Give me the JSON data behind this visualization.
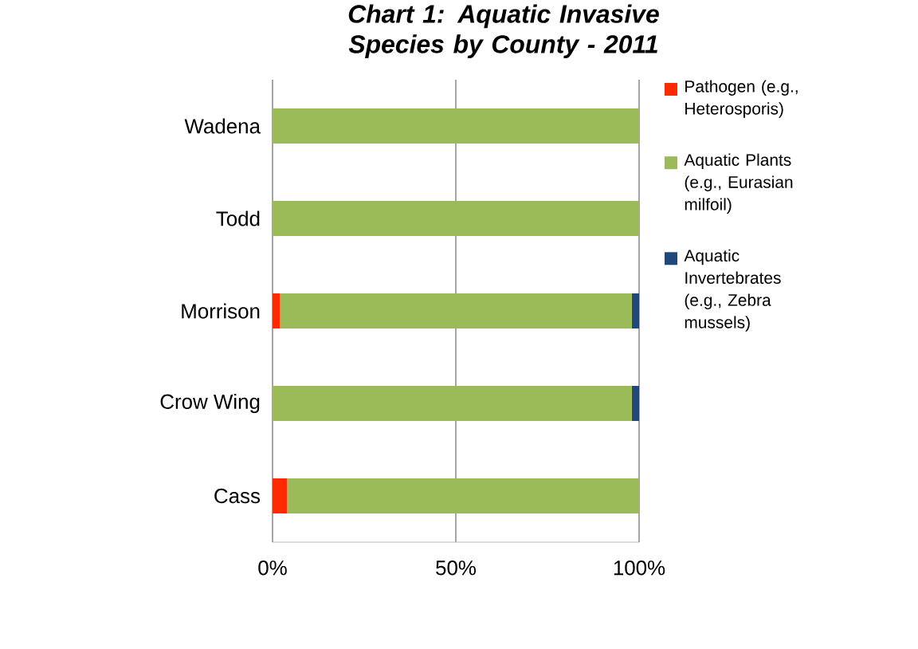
{
  "chart_data": {
    "type": "bar",
    "orientation": "horizontal",
    "stacked": true,
    "title": "Chart 1: Aquatic Invasive Species by County - 2011",
    "categories": [
      "Wadena",
      "Todd",
      "Morrison",
      "Crow Wing",
      "Cass"
    ],
    "series": [
      {
        "name": "Pathogen (e.g., Heterosporis)",
        "color": "#ff2a00",
        "values": [
          0,
          0,
          2,
          0,
          4
        ]
      },
      {
        "name": "Aquatic Plants (e.g., Eurasian milfoil)",
        "color": "#9bbb59",
        "values": [
          100,
          100,
          96,
          98,
          96
        ]
      },
      {
        "name": "Aquatic Invertebrates (e.g., Zebra mussels)",
        "color": "#1f497d",
        "values": [
          0,
          0,
          2,
          2,
          0
        ]
      }
    ],
    "xlim": [
      0,
      100
    ],
    "xticks": [
      {
        "value": 0,
        "label": "0%"
      },
      {
        "value": 50,
        "label": "50%"
      },
      {
        "value": 100,
        "label": "100%"
      }
    ],
    "grid": "x",
    "legend": "right"
  }
}
